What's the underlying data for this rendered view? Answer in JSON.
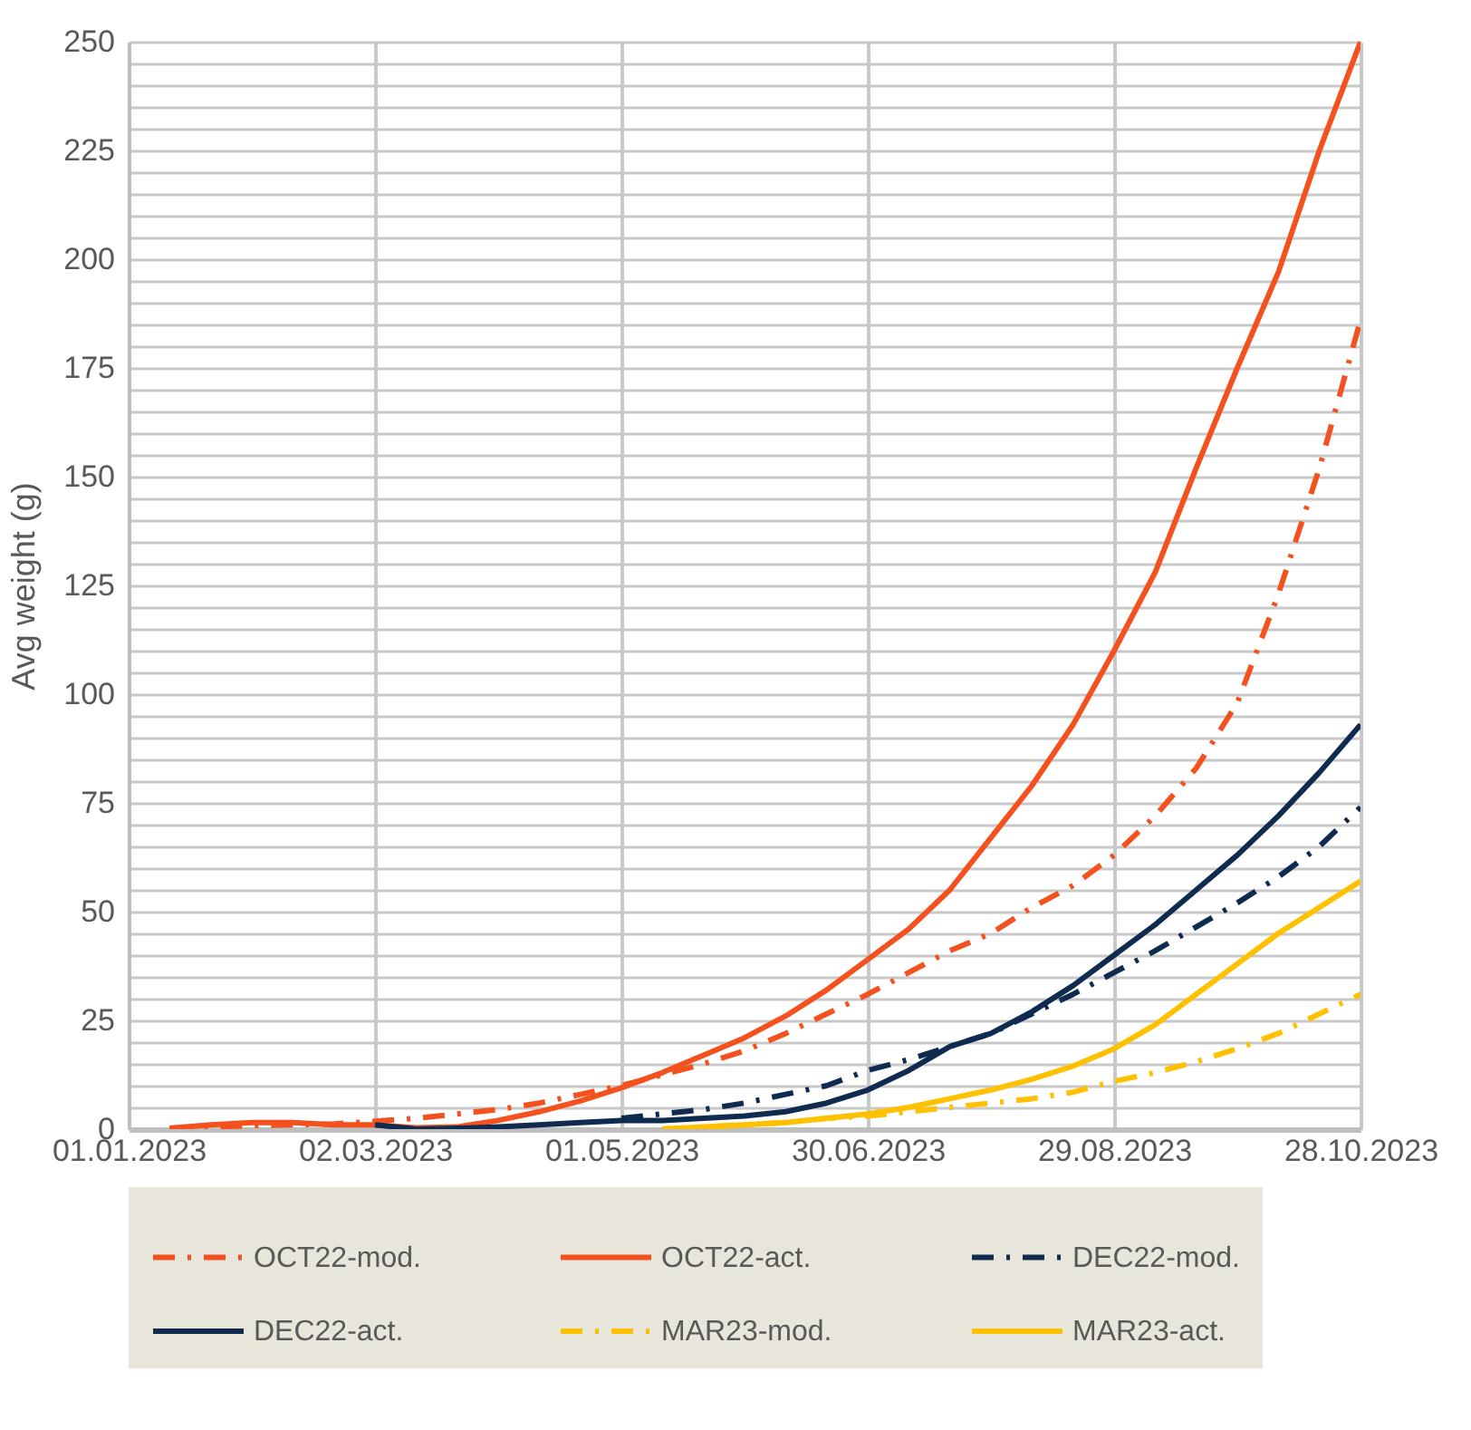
{
  "chart_data": {
    "type": "line",
    "ylabel": "Avg weight (g)",
    "x": [
      "2023-01-11",
      "2023-01-21",
      "2023-01-31",
      "2023-02-10",
      "2023-02-20",
      "2023-03-02",
      "2023-03-12",
      "2023-03-22",
      "2023-04-01",
      "2023-04-11",
      "2023-04-21",
      "2023-05-01",
      "2023-05-11",
      "2023-05-21",
      "2023-05-31",
      "2023-06-10",
      "2023-06-20",
      "2023-06-30",
      "2023-07-10",
      "2023-07-20",
      "2023-07-30",
      "2023-08-09",
      "2023-08-19",
      "2023-08-29",
      "2023-09-08",
      "2023-09-18",
      "2023-09-28",
      "2023-10-08",
      "2023-10-18",
      "2023-10-28"
    ],
    "series": [
      {
        "name": "OCT22-mod.",
        "color": "#f4511e",
        "line_style": "dashed",
        "values": [
          0.2,
          0.5,
          0.8,
          1,
          1.2,
          1.8,
          2.5,
          3.5,
          4.5,
          6,
          8,
          10,
          12.5,
          15,
          18,
          22,
          26.5,
          31,
          36,
          41,
          45,
          51,
          56,
          63,
          72,
          83,
          98,
          123,
          152,
          186
        ]
      },
      {
        "name": "OCT22-act.",
        "color": "#f4511e",
        "line_style": "solid",
        "values": [
          0.2,
          1,
          1.5,
          1.5,
          1,
          1,
          0.3,
          0.5,
          2,
          4,
          6.5,
          9.5,
          13,
          17,
          21,
          26,
          32,
          39,
          46,
          55,
          67,
          79,
          93,
          110,
          128,
          152,
          175,
          197,
          225,
          250
        ]
      },
      {
        "name": "DEC22-mod.",
        "color": "#0f2b50",
        "line_style": "dashed",
        "values": [
          null,
          null,
          null,
          null,
          null,
          null,
          null,
          null,
          null,
          null,
          null,
          2.5,
          3.5,
          4.5,
          6,
          8,
          10,
          13.5,
          16,
          19,
          22,
          26.5,
          31,
          36,
          41,
          46.5,
          52,
          58,
          65,
          74
        ]
      },
      {
        "name": "DEC22-act.",
        "color": "#0f2b50",
        "line_style": "solid",
        "values": [
          null,
          null,
          null,
          null,
          null,
          1,
          0,
          0.2,
          0.5,
          1,
          1.5,
          2,
          2,
          2.5,
          3,
          4,
          6,
          9,
          13.5,
          19,
          22,
          27,
          33,
          40,
          47,
          55,
          63,
          72,
          82,
          93
        ]
      },
      {
        "name": "MAR23-mod.",
        "color": "#ffc000",
        "line_style": "dashed",
        "values": [
          null,
          null,
          null,
          null,
          null,
          null,
          null,
          null,
          null,
          null,
          null,
          null,
          0,
          0.5,
          1,
          1.5,
          2.5,
          3,
          4,
          5,
          6,
          7,
          8.5,
          11,
          13,
          15.5,
          18.5,
          22,
          26.5,
          31
        ]
      },
      {
        "name": "MAR23-act.",
        "color": "#ffc000",
        "line_style": "solid",
        "values": [
          null,
          null,
          null,
          null,
          null,
          null,
          null,
          null,
          null,
          null,
          null,
          null,
          0,
          0.5,
          1,
          1.5,
          2.5,
          3.5,
          5,
          7,
          9,
          11.5,
          14.5,
          18.5,
          24,
          31,
          38,
          45,
          51,
          57
        ]
      }
    ],
    "xlim": [
      "2023-01-01",
      "2023-10-28"
    ],
    "xticks": [
      {
        "value": "2023-01-01",
        "label": "01.01.2023"
      },
      {
        "value": "2023-03-02",
        "label": "02.03.2023"
      },
      {
        "value": "2023-05-01",
        "label": "01.05.2023"
      },
      {
        "value": "2023-06-30",
        "label": "30.06.2023"
      },
      {
        "value": "2023-08-29",
        "label": "29.08.2023"
      },
      {
        "value": "2023-10-28",
        "label": "28.10.2023"
      }
    ],
    "ylim": [
      0,
      250
    ],
    "yticks": [
      0,
      {
        "value": 5,
        "label": null
      },
      {
        "value": 10,
        "label": null
      },
      {
        "value": 15,
        "label": null
      },
      {
        "value": 20,
        "label": null
      },
      25,
      {
        "value": 30,
        "label": null
      },
      {
        "value": 35,
        "label": null
      },
      {
        "value": 40,
        "label": null
      },
      {
        "value": 45,
        "label": null
      },
      50,
      {
        "value": 55,
        "label": null
      },
      {
        "value": 60,
        "label": null
      },
      {
        "value": 65,
        "label": null
      },
      {
        "value": 70,
        "label": null
      },
      75,
      {
        "value": 80,
        "label": null
      },
      {
        "value": 85,
        "label": null
      },
      {
        "value": 90,
        "label": null
      },
      {
        "value": 95,
        "label": null
      },
      100,
      {
        "value": 105,
        "label": null
      },
      {
        "value": 110,
        "label": null
      },
      {
        "value": 115,
        "label": null
      },
      {
        "value": 120,
        "label": null
      },
      125,
      {
        "value": 130,
        "label": null
      },
      {
        "value": 135,
        "label": null
      },
      {
        "value": 140,
        "label": null
      },
      {
        "value": 145,
        "label": null
      },
      150,
      {
        "value": 155,
        "label": null
      },
      {
        "value": 160,
        "label": null
      },
      {
        "value": 165,
        "label": null
      },
      {
        "value": 170,
        "label": null
      },
      175,
      {
        "value": 180,
        "label": null
      },
      {
        "value": 185,
        "label": null
      },
      {
        "value": 190,
        "label": null
      },
      {
        "value": 195,
        "label": null
      },
      200,
      {
        "value": 205,
        "label": null
      },
      {
        "value": 210,
        "label": null
      },
      {
        "value": 215,
        "label": null
      },
      {
        "value": 220,
        "label": null
      },
      225,
      {
        "value": 230,
        "label": null
      },
      {
        "value": 235,
        "label": null
      },
      {
        "value": 240,
        "label": null
      },
      {
        "value": 245,
        "label": null
      },
      250
    ],
    "grid": true,
    "legend": "bottom"
  }
}
